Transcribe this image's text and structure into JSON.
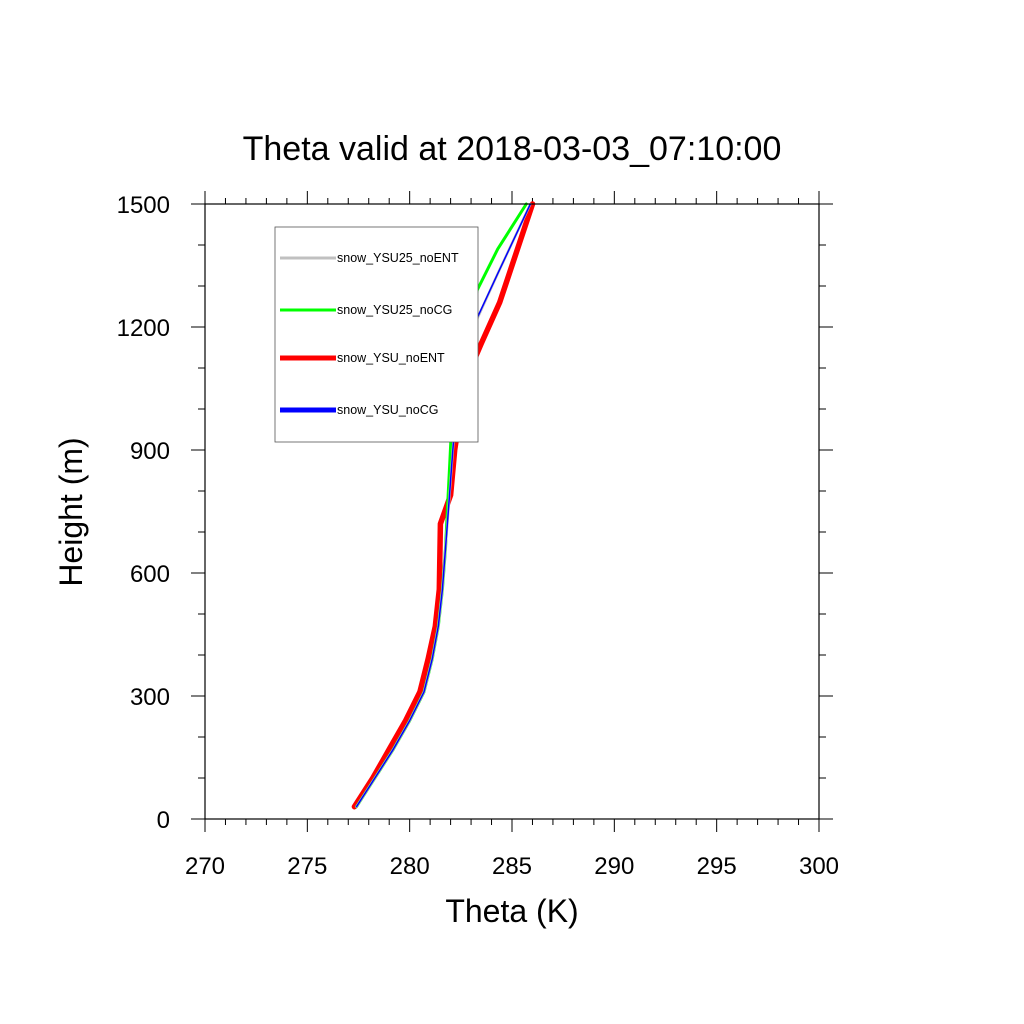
{
  "chart_data": {
    "type": "line",
    "title": "Theta valid at 2018-03-03_07:10:00",
    "xlabel": "Theta (K)",
    "ylabel": "Height (m)",
    "xlim": [
      270,
      300
    ],
    "ylim": [
      0,
      1500
    ],
    "xticks": [
      "270",
      "275",
      "280",
      "285",
      "290",
      "295",
      "300"
    ],
    "yticks": [
      "0",
      "300",
      "600",
      "900",
      "1200",
      "1500"
    ],
    "legend_position": "top-left",
    "grid": false,
    "series": [
      {
        "name": "snow_YSU25_noENT",
        "color": "#c0c0c0",
        "points": [
          [
            277.4,
            30
          ],
          [
            278.3,
            100
          ],
          [
            279.2,
            170
          ],
          [
            280.0,
            240
          ],
          [
            280.7,
            310
          ],
          [
            281.1,
            390
          ],
          [
            281.4,
            470
          ],
          [
            281.6,
            560
          ],
          [
            281.75,
            660
          ],
          [
            281.9,
            760
          ],
          [
            282.05,
            860
          ],
          [
            282.2,
            960
          ],
          [
            282.4,
            1060
          ],
          [
            282.7,
            1140
          ],
          [
            283.3,
            1220
          ],
          [
            284.3,
            1330
          ],
          [
            285.9,
            1500
          ]
        ]
      },
      {
        "name": "snow_YSU25_noCG",
        "color": "#00ff00",
        "points": [
          [
            277.4,
            30
          ],
          [
            278.3,
            100
          ],
          [
            279.2,
            170
          ],
          [
            280.0,
            240
          ],
          [
            280.7,
            310
          ],
          [
            281.1,
            390
          ],
          [
            281.4,
            470
          ],
          [
            281.6,
            560
          ],
          [
            281.75,
            660
          ],
          [
            281.85,
            760
          ],
          [
            281.95,
            860
          ],
          [
            282.05,
            960
          ],
          [
            282.3,
            1060
          ],
          [
            282.6,
            1140
          ],
          [
            282.9,
            1200
          ],
          [
            283.3,
            1290
          ],
          [
            284.3,
            1390
          ],
          [
            285.7,
            1500
          ]
        ]
      },
      {
        "name": "snow_YSU_noENT",
        "color": "#ff0000",
        "points": [
          [
            277.3,
            30
          ],
          [
            278.2,
            100
          ],
          [
            279.0,
            170
          ],
          [
            279.8,
            240
          ],
          [
            280.5,
            310
          ],
          [
            280.9,
            390
          ],
          [
            281.25,
            470
          ],
          [
            281.45,
            560
          ],
          [
            281.5,
            720
          ],
          [
            282.0,
            790
          ],
          [
            282.2,
            900
          ],
          [
            282.5,
            1000
          ],
          [
            282.9,
            1090
          ],
          [
            283.5,
            1160
          ],
          [
            284.4,
            1260
          ],
          [
            286.0,
            1500
          ]
        ]
      },
      {
        "name": "snow_YSU_noCG",
        "color": "#0000ff",
        "points": [
          [
            277.4,
            30
          ],
          [
            278.3,
            100
          ],
          [
            279.2,
            170
          ],
          [
            280.0,
            240
          ],
          [
            280.7,
            310
          ],
          [
            281.1,
            390
          ],
          [
            281.4,
            470
          ],
          [
            281.6,
            560
          ],
          [
            281.75,
            660
          ],
          [
            281.9,
            760
          ],
          [
            282.05,
            860
          ],
          [
            282.2,
            960
          ],
          [
            282.35,
            1070
          ],
          [
            282.7,
            1130
          ],
          [
            283.0,
            1190
          ],
          [
            284.3,
            1330
          ],
          [
            285.9,
            1500
          ]
        ]
      }
    ]
  }
}
